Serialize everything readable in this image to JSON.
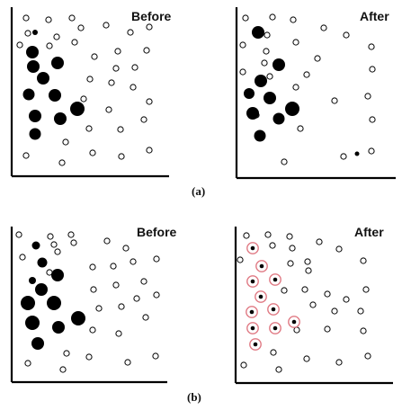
{
  "figure": {
    "rows": [
      {
        "caption": "(a)",
        "panels": [
          {
            "title": "Before",
            "empty_points": 30,
            "filled_points": 10
          },
          {
            "title": "After",
            "empty_points": 31,
            "filled_points": 8
          }
        ]
      },
      {
        "caption": "(b)",
        "panels": [
          {
            "title": "Before",
            "empty_points": 31,
            "filled_points": 10
          },
          {
            "title": "After",
            "empty_points": 28,
            "highlighted_points": 11,
            "highlight_color": "#e07a84"
          }
        ]
      }
    ],
    "colors": {
      "axis": "#000000",
      "point_outline": "#000000",
      "filled_point": "#000000",
      "highlight_ring": "#e07a84"
    }
  }
}
